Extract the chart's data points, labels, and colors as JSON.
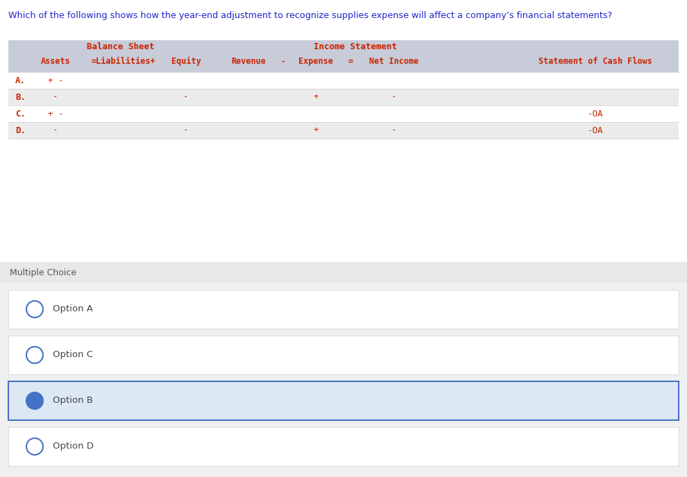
{
  "question": "Which of the following shows how the year-end adjustment to recognize supplies expense will affect a company’s financial statements?",
  "question_color": "#2222cc",
  "header_bg": "#c8ccd8",
  "row_bg_even": "#ffffff",
  "row_bg_odd": "#ebebeb",
  "mc_bg": "#e8e8e8",
  "mc_below_bg": "#f0f0f0",
  "rows": [
    {
      "label": "A.",
      "assets": "+ -",
      "equity": "",
      "expense": "",
      "net_income": "",
      "cash_flows": ""
    },
    {
      "label": "B.",
      "assets": "-",
      "equity": "-",
      "expense": "+",
      "net_income": "-",
      "cash_flows": ""
    },
    {
      "label": "C.",
      "assets": "+ -",
      "equity": "",
      "expense": "",
      "net_income": "",
      "cash_flows": "-OA"
    },
    {
      "label": "D.",
      "assets": "-",
      "equity": "-",
      "expense": "+",
      "net_income": "-",
      "cash_flows": "-OA"
    }
  ],
  "options": [
    "Option A",
    "Option C",
    "Option B",
    "Option D"
  ],
  "selected_option": "Option B",
  "selected_bg": "#dde8f5",
  "selected_border": "#4472c4",
  "option_bg": "#ffffff",
  "option_gap_bg": "#f0f0f0",
  "option_text_color": "#444444",
  "circle_border_color": "#4472c4",
  "circle_fill_selected": "#4472c4",
  "circle_fill_unselected": "#ffffff",
  "font_color_table": "#cc2200",
  "font_color_header": "#cc2200",
  "background_color": "#ffffff"
}
